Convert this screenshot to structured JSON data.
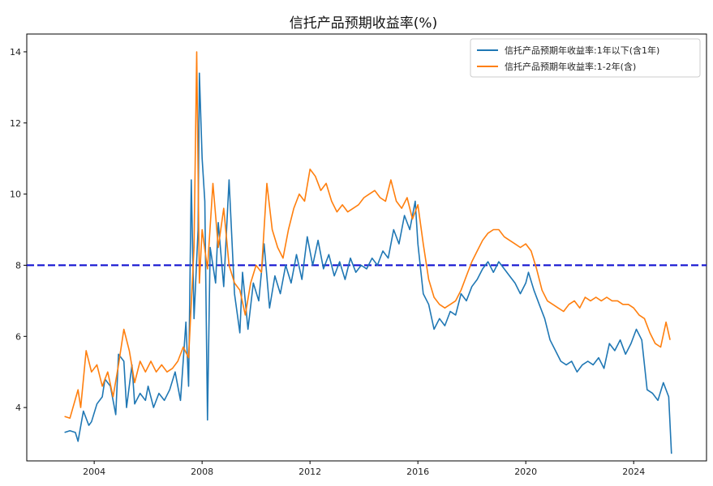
{
  "chart_data": {
    "type": "line",
    "title": "信托产品预期收益率(%)",
    "xlabel": "",
    "ylabel": "",
    "xlim": [
      2001.5,
      2026.7
    ],
    "ylim": [
      2.5,
      14.5
    ],
    "x_ticks": [
      "2004",
      "2008",
      "2012",
      "2016",
      "2020",
      "2024"
    ],
    "y_ticks": [
      "4",
      "6",
      "8",
      "10",
      "12",
      "14"
    ],
    "legend_position": "top-right",
    "reference_line": {
      "y": 8,
      "style": "dashed",
      "color": "#1010d0"
    },
    "series": [
      {
        "name": "信托产品预期年收益率:1年以下(含1年)",
        "color": "#1f77b4",
        "points": [
          [
            2002.9,
            3.3
          ],
          [
            2003.1,
            3.35
          ],
          [
            2003.3,
            3.3
          ],
          [
            2003.4,
            3.05
          ],
          [
            2003.6,
            3.9
          ],
          [
            2003.8,
            3.5
          ],
          [
            2003.9,
            3.6
          ],
          [
            2004.1,
            4.1
          ],
          [
            2004.3,
            4.3
          ],
          [
            2004.4,
            4.8
          ],
          [
            2004.6,
            4.6
          ],
          [
            2004.8,
            3.8
          ],
          [
            2004.9,
            5.5
          ],
          [
            2005.1,
            5.3
          ],
          [
            2005.2,
            4.0
          ],
          [
            2005.4,
            5.2
          ],
          [
            2005.5,
            4.1
          ],
          [
            2005.7,
            4.4
          ],
          [
            2005.9,
            4.2
          ],
          [
            2006.0,
            4.6
          ],
          [
            2006.2,
            4.0
          ],
          [
            2006.4,
            4.4
          ],
          [
            2006.6,
            4.2
          ],
          [
            2006.8,
            4.5
          ],
          [
            2007.0,
            5.0
          ],
          [
            2007.2,
            4.2
          ],
          [
            2007.4,
            6.4
          ],
          [
            2007.5,
            4.6
          ],
          [
            2007.6,
            10.4
          ],
          [
            2007.7,
            6.5
          ],
          [
            2007.85,
            9.0
          ],
          [
            2007.9,
            13.4
          ],
          [
            2008.0,
            11.0
          ],
          [
            2008.1,
            9.8
          ],
          [
            2008.2,
            3.65
          ],
          [
            2008.3,
            8.5
          ],
          [
            2008.5,
            7.5
          ],
          [
            2008.6,
            9.2
          ],
          [
            2008.8,
            7.4
          ],
          [
            2009.0,
            10.4
          ],
          [
            2009.2,
            7.2
          ],
          [
            2009.4,
            6.1
          ],
          [
            2009.5,
            7.8
          ],
          [
            2009.7,
            6.2
          ],
          [
            2009.9,
            7.5
          ],
          [
            2010.1,
            7.0
          ],
          [
            2010.3,
            8.6
          ],
          [
            2010.5,
            6.8
          ],
          [
            2010.7,
            7.7
          ],
          [
            2010.9,
            7.2
          ],
          [
            2011.1,
            8.0
          ],
          [
            2011.3,
            7.5
          ],
          [
            2011.5,
            8.3
          ],
          [
            2011.7,
            7.6
          ],
          [
            2011.9,
            8.8
          ],
          [
            2012.1,
            8.0
          ],
          [
            2012.3,
            8.7
          ],
          [
            2012.5,
            7.9
          ],
          [
            2012.7,
            8.3
          ],
          [
            2012.9,
            7.7
          ],
          [
            2013.1,
            8.1
          ],
          [
            2013.3,
            7.6
          ],
          [
            2013.5,
            8.2
          ],
          [
            2013.7,
            7.8
          ],
          [
            2013.9,
            8.0
          ],
          [
            2014.1,
            7.9
          ],
          [
            2014.3,
            8.2
          ],
          [
            2014.5,
            8.0
          ],
          [
            2014.7,
            8.4
          ],
          [
            2014.9,
            8.2
          ],
          [
            2015.1,
            9.0
          ],
          [
            2015.3,
            8.6
          ],
          [
            2015.5,
            9.4
          ],
          [
            2015.7,
            9.0
          ],
          [
            2015.9,
            9.8
          ],
          [
            2016.0,
            8.6
          ],
          [
            2016.2,
            7.2
          ],
          [
            2016.4,
            6.9
          ],
          [
            2016.6,
            6.2
          ],
          [
            2016.8,
            6.5
          ],
          [
            2017.0,
            6.3
          ],
          [
            2017.2,
            6.7
          ],
          [
            2017.4,
            6.6
          ],
          [
            2017.6,
            7.2
          ],
          [
            2017.8,
            7.0
          ],
          [
            2018.0,
            7.4
          ],
          [
            2018.2,
            7.6
          ],
          [
            2018.4,
            7.9
          ],
          [
            2018.6,
            8.1
          ],
          [
            2018.8,
            7.8
          ],
          [
            2019.0,
            8.1
          ],
          [
            2019.2,
            7.9
          ],
          [
            2019.4,
            7.7
          ],
          [
            2019.6,
            7.5
          ],
          [
            2019.8,
            7.2
          ],
          [
            2020.0,
            7.5
          ],
          [
            2020.1,
            7.8
          ],
          [
            2020.3,
            7.3
          ],
          [
            2020.5,
            6.9
          ],
          [
            2020.7,
            6.5
          ],
          [
            2020.9,
            5.9
          ],
          [
            2021.1,
            5.6
          ],
          [
            2021.3,
            5.3
          ],
          [
            2021.5,
            5.2
          ],
          [
            2021.7,
            5.3
          ],
          [
            2021.9,
            5.0
          ],
          [
            2022.1,
            5.2
          ],
          [
            2022.3,
            5.3
          ],
          [
            2022.5,
            5.2
          ],
          [
            2022.7,
            5.4
          ],
          [
            2022.9,
            5.1
          ],
          [
            2023.1,
            5.8
          ],
          [
            2023.3,
            5.6
          ],
          [
            2023.5,
            5.9
          ],
          [
            2023.7,
            5.5
          ],
          [
            2023.9,
            5.8
          ],
          [
            2024.1,
            6.2
          ],
          [
            2024.3,
            5.9
          ],
          [
            2024.5,
            4.5
          ],
          [
            2024.7,
            4.4
          ],
          [
            2024.9,
            4.2
          ],
          [
            2025.1,
            4.7
          ],
          [
            2025.3,
            4.3
          ],
          [
            2025.4,
            2.7
          ]
        ]
      },
      {
        "name": "信托产品预期年收益率:1-2年(含)",
        "color": "#ff7f0e",
        "points": [
          [
            2002.9,
            3.75
          ],
          [
            2003.1,
            3.7
          ],
          [
            2003.4,
            4.5
          ],
          [
            2003.5,
            4.0
          ],
          [
            2003.7,
            5.6
          ],
          [
            2003.9,
            5.0
          ],
          [
            2004.1,
            5.2
          ],
          [
            2004.3,
            4.6
          ],
          [
            2004.5,
            5.0
          ],
          [
            2004.7,
            4.3
          ],
          [
            2004.9,
            5.2
          ],
          [
            2005.1,
            6.2
          ],
          [
            2005.3,
            5.6
          ],
          [
            2005.5,
            4.7
          ],
          [
            2005.7,
            5.3
          ],
          [
            2005.9,
            5.0
          ],
          [
            2006.1,
            5.3
          ],
          [
            2006.3,
            5.0
          ],
          [
            2006.5,
            5.2
          ],
          [
            2006.7,
            5.0
          ],
          [
            2006.9,
            5.1
          ],
          [
            2007.1,
            5.3
          ],
          [
            2007.3,
            5.7
          ],
          [
            2007.5,
            5.4
          ],
          [
            2007.7,
            8.5
          ],
          [
            2007.8,
            14.0
          ],
          [
            2007.9,
            7.5
          ],
          [
            2008.0,
            9.0
          ],
          [
            2008.2,
            7.9
          ],
          [
            2008.4,
            10.3
          ],
          [
            2008.6,
            8.5
          ],
          [
            2008.8,
            9.6
          ],
          [
            2009.0,
            8.0
          ],
          [
            2009.2,
            7.5
          ],
          [
            2009.4,
            7.3
          ],
          [
            2009.6,
            6.6
          ],
          [
            2009.8,
            7.5
          ],
          [
            2010.0,
            8.0
          ],
          [
            2010.2,
            7.8
          ],
          [
            2010.4,
            10.3
          ],
          [
            2010.6,
            9.0
          ],
          [
            2010.8,
            8.5
          ],
          [
            2011.0,
            8.2
          ],
          [
            2011.2,
            9.0
          ],
          [
            2011.4,
            9.6
          ],
          [
            2011.6,
            10.0
          ],
          [
            2011.8,
            9.8
          ],
          [
            2012.0,
            10.7
          ],
          [
            2012.2,
            10.5
          ],
          [
            2012.4,
            10.1
          ],
          [
            2012.6,
            10.3
          ],
          [
            2012.8,
            9.8
          ],
          [
            2013.0,
            9.5
          ],
          [
            2013.2,
            9.7
          ],
          [
            2013.4,
            9.5
          ],
          [
            2013.6,
            9.6
          ],
          [
            2013.8,
            9.7
          ],
          [
            2014.0,
            9.9
          ],
          [
            2014.2,
            10.0
          ],
          [
            2014.4,
            10.1
          ],
          [
            2014.6,
            9.9
          ],
          [
            2014.8,
            9.8
          ],
          [
            2015.0,
            10.4
          ],
          [
            2015.2,
            9.8
          ],
          [
            2015.4,
            9.6
          ],
          [
            2015.6,
            9.9
          ],
          [
            2015.8,
            9.3
          ],
          [
            2016.0,
            9.7
          ],
          [
            2016.2,
            8.6
          ],
          [
            2016.4,
            7.6
          ],
          [
            2016.6,
            7.1
          ],
          [
            2016.8,
            6.9
          ],
          [
            2017.0,
            6.8
          ],
          [
            2017.2,
            6.9
          ],
          [
            2017.4,
            7.0
          ],
          [
            2017.6,
            7.3
          ],
          [
            2017.8,
            7.7
          ],
          [
            2018.0,
            8.1
          ],
          [
            2018.2,
            8.4
          ],
          [
            2018.4,
            8.7
          ],
          [
            2018.6,
            8.9
          ],
          [
            2018.8,
            9.0
          ],
          [
            2019.0,
            9.0
          ],
          [
            2019.2,
            8.8
          ],
          [
            2019.4,
            8.7
          ],
          [
            2019.6,
            8.6
          ],
          [
            2019.8,
            8.5
          ],
          [
            2020.0,
            8.6
          ],
          [
            2020.2,
            8.4
          ],
          [
            2020.4,
            7.9
          ],
          [
            2020.6,
            7.3
          ],
          [
            2020.8,
            7.0
          ],
          [
            2021.0,
            6.9
          ],
          [
            2021.2,
            6.8
          ],
          [
            2021.4,
            6.7
          ],
          [
            2021.6,
            6.9
          ],
          [
            2021.8,
            7.0
          ],
          [
            2022.0,
            6.8
          ],
          [
            2022.2,
            7.1
          ],
          [
            2022.4,
            7.0
          ],
          [
            2022.6,
            7.1
          ],
          [
            2022.8,
            7.0
          ],
          [
            2023.0,
            7.1
          ],
          [
            2023.2,
            7.0
          ],
          [
            2023.4,
            7.0
          ],
          [
            2023.6,
            6.9
          ],
          [
            2023.8,
            6.9
          ],
          [
            2024.0,
            6.8
          ],
          [
            2024.2,
            6.6
          ],
          [
            2024.4,
            6.5
          ],
          [
            2024.6,
            6.1
          ],
          [
            2024.8,
            5.8
          ],
          [
            2025.0,
            5.7
          ],
          [
            2025.2,
            6.4
          ],
          [
            2025.35,
            5.9
          ]
        ]
      }
    ]
  }
}
